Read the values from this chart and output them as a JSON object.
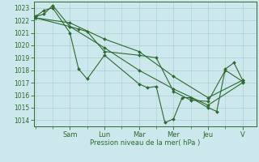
{
  "xlabel": "Pression niveau de la mer( hPa )",
  "bg_color": "#cce8ec",
  "grid_color": "#aacfd4",
  "line_color": "#2d6a2d",
  "ylim": [
    1013.5,
    1023.5
  ],
  "yticks": [
    1014,
    1015,
    1016,
    1017,
    1018,
    1019,
    1020,
    1021,
    1022,
    1023
  ],
  "day_labels": [
    "Sam",
    "Lun",
    "Mar",
    "Mer",
    "Jeu",
    "V"
  ],
  "day_positions": [
    2.0,
    4.0,
    6.0,
    8.0,
    10.0,
    12.0
  ],
  "xlim": [
    -0.1,
    12.8
  ],
  "series": [
    {
      "x": [
        0,
        0.5,
        1.0,
        2.0,
        2.5,
        3.0,
        4.0,
        6.0,
        6.5,
        7.0,
        7.5,
        8.0,
        8.5,
        9.0,
        10.0,
        10.5,
        11.0,
        11.5,
        12.0
      ],
      "y": [
        1022.3,
        1022.8,
        1023.0,
        1021.0,
        1018.1,
        1017.3,
        1019.2,
        1016.9,
        1016.6,
        1016.7,
        1013.8,
        1014.1,
        1015.8,
        1015.8,
        1015.0,
        1014.7,
        1018.1,
        1018.6,
        1017.2
      ]
    },
    {
      "x": [
        0,
        0.5,
        1.0,
        2.0,
        2.5,
        3.0,
        4.0,
        6.0,
        7.0,
        8.0,
        9.0,
        10.0,
        11.0,
        12.0
      ],
      "y": [
        1022.3,
        1022.5,
        1023.2,
        1021.5,
        1021.3,
        1021.1,
        1019.5,
        1019.2,
        1019.0,
        1016.3,
        1015.6,
        1015.5,
        1018.0,
        1017.1
      ]
    },
    {
      "x": [
        0,
        2.0,
        4.0,
        6.0,
        8.0,
        10.0,
        12.0
      ],
      "y": [
        1022.2,
        1021.5,
        1019.8,
        1018.0,
        1016.5,
        1015.2,
        1017.0
      ]
    },
    {
      "x": [
        0,
        2.0,
        4.0,
        6.0,
        8.0,
        10.0,
        12.0
      ],
      "y": [
        1022.2,
        1021.8,
        1020.5,
        1019.5,
        1017.5,
        1015.8,
        1017.2
      ]
    }
  ]
}
